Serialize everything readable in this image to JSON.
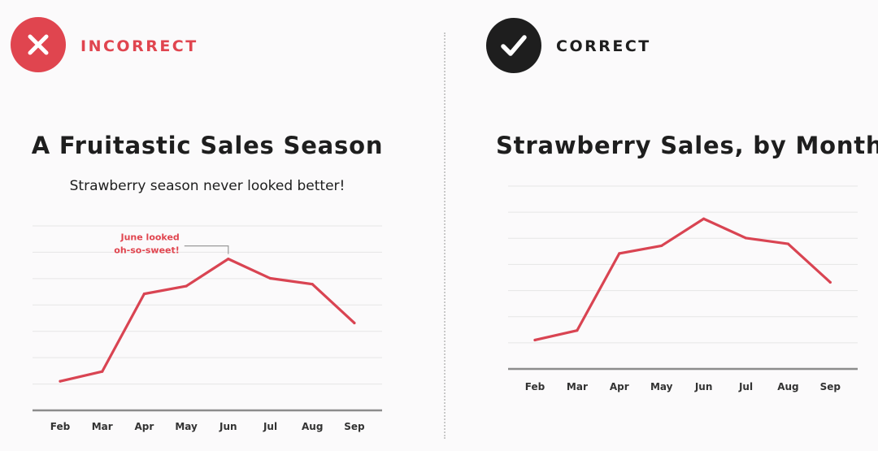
{
  "colors": {
    "accent_red": "#e0454f",
    "line_red": "#d94452",
    "dark": "#1e1e1e",
    "grid": "#e6e6e6",
    "axis": "#8c8c8c"
  },
  "incorrect": {
    "icon": "x-icon",
    "label": "INCORRECT"
  },
  "correct": {
    "icon": "checkmark-icon",
    "label": "CORRECT"
  },
  "chart_data": [
    {
      "type": "line",
      "title": "A Fruitastic Sales Season",
      "subtitle": "Strawberry season never looked better!",
      "categories": [
        "Feb",
        "Mar",
        "Apr",
        "May",
        "Jun",
        "Jul",
        "Aug",
        "Sep"
      ],
      "values": [
        1.5,
        2.0,
        6.0,
        6.4,
        7.8,
        6.8,
        6.5,
        4.5
      ],
      "ylim": [
        0,
        9.5
      ],
      "grid": true,
      "annotation": {
        "category": "Jun",
        "lines": [
          "June looked",
          "oh-so-sweet!"
        ]
      }
    },
    {
      "type": "line",
      "title": "Strawberry Sales, by Month",
      "categories": [
        "Feb",
        "Mar",
        "Apr",
        "May",
        "Jun",
        "Jul",
        "Aug",
        "Sep"
      ],
      "values": [
        1.5,
        2.0,
        6.0,
        6.4,
        7.8,
        6.8,
        6.5,
        4.5
      ],
      "ylim": [
        0,
        9.5
      ],
      "grid": true
    }
  ]
}
